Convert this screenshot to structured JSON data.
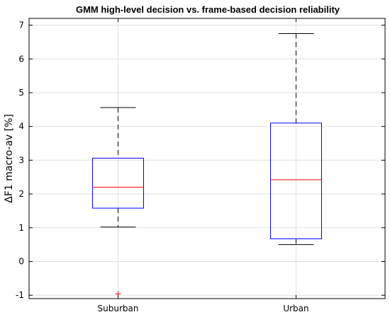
{
  "chart_data": {
    "type": "box",
    "title": "GMM high-level decision vs. frame-based decision reliability",
    "ylabel": "ΔF1 macro-av [%]",
    "xlabel": "",
    "ylim": [
      -1.1,
      7.2
    ],
    "yticks": [
      -1,
      0,
      1,
      2,
      3,
      4,
      5,
      6,
      7
    ],
    "categories": [
      "Suburban",
      "Urban"
    ],
    "grid": true,
    "boxes": [
      {
        "category": "Suburban",
        "whisker_low": 1.02,
        "q1": 1.58,
        "median": 2.2,
        "q3": 3.06,
        "whisker_high": 4.56,
        "outliers": [
          -0.96
        ]
      },
      {
        "category": "Urban",
        "whisker_low": 0.5,
        "q1": 0.67,
        "median": 2.42,
        "q3": 4.1,
        "whisker_high": 6.75,
        "outliers": []
      }
    ]
  },
  "colors": {
    "box": "#0000ff",
    "median": "#ff0000",
    "whisker": "#000000",
    "outlier": "#ff0000",
    "grid": "#e0e0e0",
    "axis": "#000000"
  }
}
